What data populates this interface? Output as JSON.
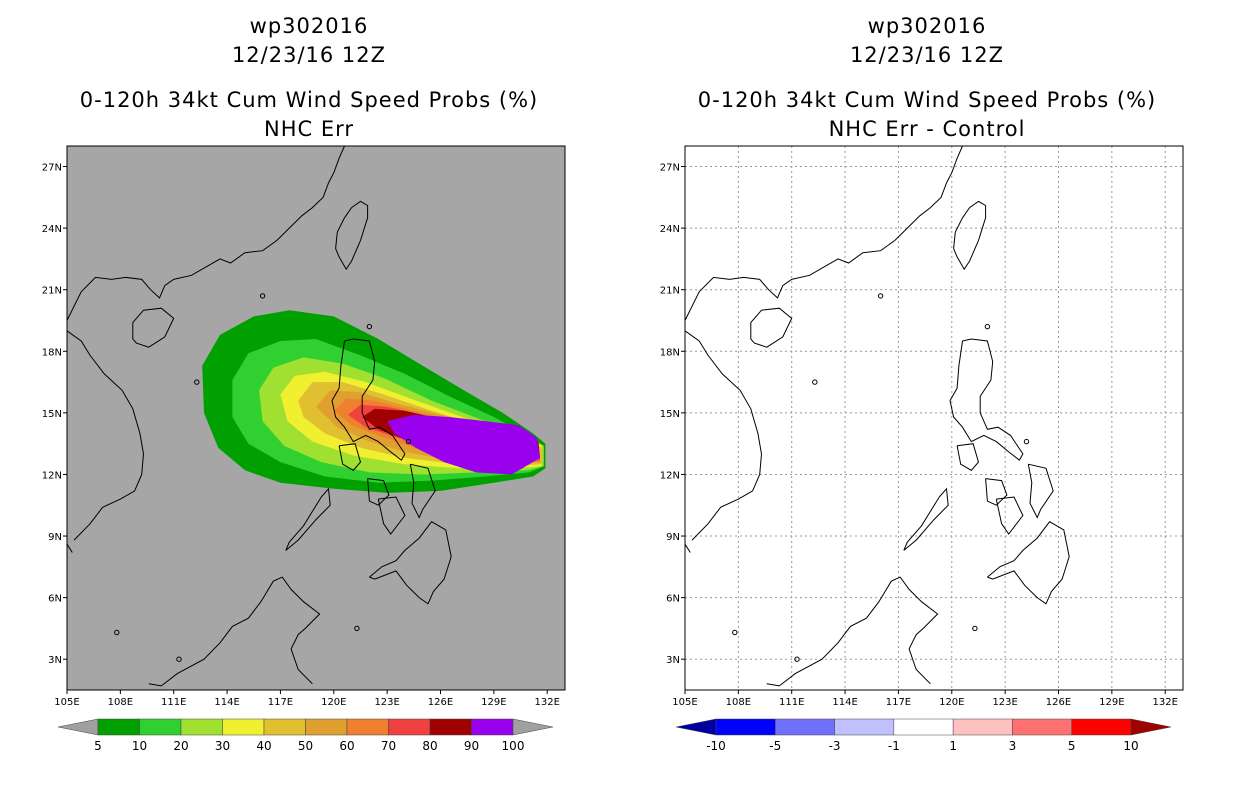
{
  "left_panel": {
    "title_line1": "wp302016",
    "title_line2": "12/23/16 12Z",
    "title_line3": "0-120h 34kt Cum Wind Speed Probs (%)",
    "title_line4": "NHC Err",
    "background_color": "#a6a6a6",
    "colorbar": {
      "labels": [
        "5",
        "10",
        "20",
        "30",
        "40",
        "50",
        "60",
        "70",
        "80",
        "90",
        "100"
      ],
      "colors": [
        "#a0a0a0",
        "#00a000",
        "#30d030",
        "#a0e030",
        "#f0f030",
        "#e0c030",
        "#e0a030",
        "#f08030",
        "#f04040",
        "#a00000",
        "#9900ee",
        "#a0a0a0"
      ]
    }
  },
  "right_panel": {
    "title_line1": "wp302016",
    "title_line2": "12/23/16 12Z",
    "title_line3": "0-120h 34kt Cum Wind Speed Probs (%)",
    "title_line4": "NHC Err - Control",
    "background_color": "#ffffff",
    "colorbar": {
      "labels": [
        "-10",
        "-5",
        "-3",
        "-1",
        "1",
        "3",
        "5",
        "10"
      ],
      "colors": [
        "#0000a0",
        "#0000ff",
        "#7070ff",
        "#c0c0ff",
        "#ffffff",
        "#ffc0c0",
        "#ff7070",
        "#ff0000",
        "#a00000"
      ]
    }
  },
  "axes": {
    "lon_labels": [
      "105E",
      "108E",
      "111E",
      "114E",
      "117E",
      "120E",
      "123E",
      "126E",
      "129E",
      "132E"
    ],
    "lat_labels": [
      "3N",
      "6N",
      "9N",
      "12N",
      "15N",
      "18N",
      "21N",
      "24N",
      "27N"
    ],
    "lon_range": [
      105,
      133
    ],
    "lat_range": [
      1.5,
      28
    ]
  }
}
